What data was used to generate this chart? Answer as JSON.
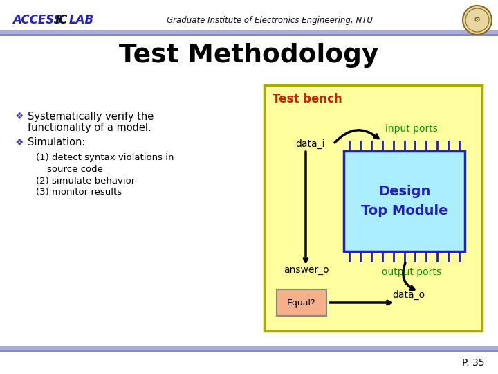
{
  "title": "Test Methodology",
  "header_access": "ACCESS",
  "header_ic": "IC",
  "header_lab": "LAB",
  "header_subtitle": "Graduate Institute of Electronics Engineering, NTU",
  "bg_color": "#ffffff",
  "title_color": "#000000",
  "title_fontsize": 28,
  "bullet_color": "#4444aa",
  "diagram_bg": "#ffffa0",
  "diagram_border": "#aaaa00",
  "testbench_label": "Test bench",
  "testbench_color": "#cc2200",
  "data_i_label": "data_i",
  "input_ports_label": "input ports",
  "input_ports_color": "#009900",
  "design_box_bg": "#aaeeff",
  "design_box_border": "#2222bb",
  "design_label1": "Design",
  "design_label2": "Top Module",
  "design_label_color": "#2222bb",
  "answer_o_label": "answer_o",
  "output_ports_label": "output ports",
  "output_ports_color": "#009900",
  "equal_box_bg": "#f5b08a",
  "equal_box_border": "#888888",
  "equal_label": "Equal?",
  "data_o_label": "data_o",
  "page_number": "P. 35",
  "header_line_color": "#7777cc",
  "footer_line_color": "#7777cc"
}
